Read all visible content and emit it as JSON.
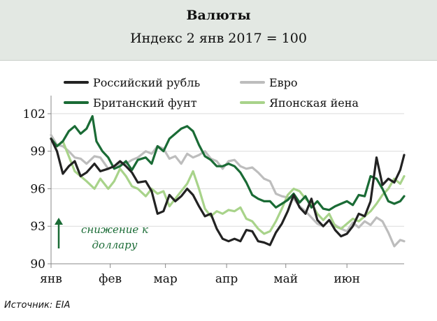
{
  "header": {
    "title": "Валюты",
    "subtitle": "Индекс 2 янв 2017 = 100"
  },
  "source": "Источник: EIA",
  "colors": {
    "rub": "#222222",
    "eur": "#bdbdbd",
    "gbp": "#1a6b35",
    "jpy": "#a8d38a",
    "grid": "#dcdcdc",
    "axis": "#888888",
    "annotation": "#1a6b35"
  },
  "annotation": {
    "line1": "снижение к",
    "line2": "доллару"
  },
  "chart_data": {
    "type": "line",
    "title": "Валюты",
    "subtitle": "Индекс 2 янв 2017 = 100",
    "xlabel": "",
    "ylabel": "",
    "x_range": [
      "2017-01-02",
      "2017-06-30"
    ],
    "ylim": [
      90,
      103
    ],
    "yticks": [
      90,
      93,
      96,
      99,
      102
    ],
    "xticks": [
      {
        "label": "янв",
        "date": "2017-01-01"
      },
      {
        "label": "фев",
        "date": "2017-02-01"
      },
      {
        "label": "мар",
        "date": "2017-03-01"
      },
      {
        "label": "апр",
        "date": "2017-04-01"
      },
      {
        "label": "май",
        "date": "2017-05-01"
      },
      {
        "label": "июн",
        "date": "2017-06-01"
      }
    ],
    "grid": "horizontal",
    "legend_position": "top",
    "series": [
      {
        "name": "Российский рубль",
        "key": "rub",
        "points": [
          [
            "2017-01-02",
            100.0
          ],
          [
            "2017-01-05",
            99.0
          ],
          [
            "2017-01-08",
            97.2
          ],
          [
            "2017-01-11",
            97.8
          ],
          [
            "2017-01-14",
            98.2
          ],
          [
            "2017-01-17",
            97.0
          ],
          [
            "2017-01-20",
            97.3
          ],
          [
            "2017-01-24",
            98.0
          ],
          [
            "2017-01-27",
            97.4
          ],
          [
            "2017-01-31",
            97.6
          ],
          [
            "2017-02-03",
            97.8
          ],
          [
            "2017-02-06",
            98.2
          ],
          [
            "2017-02-09",
            97.8
          ],
          [
            "2017-02-12",
            97.3
          ],
          [
            "2017-02-15",
            96.5
          ],
          [
            "2017-02-19",
            96.6
          ],
          [
            "2017-02-22",
            95.8
          ],
          [
            "2017-02-25",
            94.0
          ],
          [
            "2017-02-28",
            94.2
          ],
          [
            "2017-03-03",
            95.5
          ],
          [
            "2017-03-06",
            95.0
          ],
          [
            "2017-03-09",
            95.4
          ],
          [
            "2017-03-12",
            96.0
          ],
          [
            "2017-03-15",
            95.5
          ],
          [
            "2017-03-18",
            94.6
          ],
          [
            "2017-03-21",
            93.8
          ],
          [
            "2017-03-24",
            94.0
          ],
          [
            "2017-03-27",
            92.8
          ],
          [
            "2017-03-30",
            92.0
          ],
          [
            "2017-04-02",
            91.8
          ],
          [
            "2017-04-05",
            92.0
          ],
          [
            "2017-04-08",
            91.8
          ],
          [
            "2017-04-11",
            92.7
          ],
          [
            "2017-04-14",
            92.6
          ],
          [
            "2017-04-17",
            91.8
          ],
          [
            "2017-04-20",
            91.7
          ],
          [
            "2017-04-23",
            91.5
          ],
          [
            "2017-04-26",
            92.5
          ],
          [
            "2017-04-29",
            93.2
          ],
          [
            "2017-05-02",
            94.2
          ],
          [
            "2017-05-05",
            95.5
          ],
          [
            "2017-05-08",
            94.5
          ],
          [
            "2017-05-11",
            94.0
          ],
          [
            "2017-05-14",
            95.2
          ],
          [
            "2017-05-17",
            93.5
          ],
          [
            "2017-05-20",
            93.0
          ],
          [
            "2017-05-23",
            93.5
          ],
          [
            "2017-05-26",
            92.7
          ],
          [
            "2017-05-29",
            92.2
          ],
          [
            "2017-06-01",
            92.4
          ],
          [
            "2017-06-04",
            93.0
          ],
          [
            "2017-06-07",
            94.0
          ],
          [
            "2017-06-10",
            93.8
          ],
          [
            "2017-06-13",
            95.0
          ],
          [
            "2017-06-16",
            98.5
          ],
          [
            "2017-06-19",
            96.3
          ],
          [
            "2017-06-22",
            96.8
          ],
          [
            "2017-06-25",
            96.5
          ],
          [
            "2017-06-28",
            97.5
          ],
          [
            "2017-06-30",
            98.7
          ]
        ]
      },
      {
        "name": "Евро",
        "key": "eur",
        "points": [
          [
            "2017-01-02",
            100.3
          ],
          [
            "2017-01-05",
            99.5
          ],
          [
            "2017-01-08",
            99.4
          ],
          [
            "2017-01-11",
            99.0
          ],
          [
            "2017-01-14",
            98.5
          ],
          [
            "2017-01-17",
            98.4
          ],
          [
            "2017-01-20",
            98.0
          ],
          [
            "2017-01-24",
            98.6
          ],
          [
            "2017-01-27",
            98.5
          ],
          [
            "2017-01-31",
            97.6
          ],
          [
            "2017-02-03",
            97.8
          ],
          [
            "2017-02-06",
            98.0
          ],
          [
            "2017-02-09",
            98.0
          ],
          [
            "2017-02-12",
            98.3
          ],
          [
            "2017-02-15",
            98.5
          ],
          [
            "2017-02-19",
            99.0
          ],
          [
            "2017-02-22",
            98.8
          ],
          [
            "2017-02-25",
            99.4
          ],
          [
            "2017-02-28",
            99.2
          ],
          [
            "2017-03-03",
            98.4
          ],
          [
            "2017-03-06",
            98.6
          ],
          [
            "2017-03-09",
            98.0
          ],
          [
            "2017-03-12",
            98.8
          ],
          [
            "2017-03-15",
            98.5
          ],
          [
            "2017-03-18",
            98.7
          ],
          [
            "2017-03-21",
            99.0
          ],
          [
            "2017-03-24",
            98.4
          ],
          [
            "2017-03-27",
            98.2
          ],
          [
            "2017-03-30",
            97.6
          ],
          [
            "2017-04-02",
            98.2
          ],
          [
            "2017-04-05",
            98.3
          ],
          [
            "2017-04-08",
            97.8
          ],
          [
            "2017-04-11",
            97.6
          ],
          [
            "2017-04-14",
            97.7
          ],
          [
            "2017-04-17",
            97.3
          ],
          [
            "2017-04-20",
            96.8
          ],
          [
            "2017-04-23",
            96.6
          ],
          [
            "2017-04-26",
            95.6
          ],
          [
            "2017-04-29",
            95.4
          ],
          [
            "2017-05-02",
            95.3
          ],
          [
            "2017-05-05",
            95.2
          ],
          [
            "2017-05-08",
            94.6
          ],
          [
            "2017-05-11",
            94.2
          ],
          [
            "2017-05-14",
            93.7
          ],
          [
            "2017-05-17",
            93.2
          ],
          [
            "2017-05-20",
            93.0
          ],
          [
            "2017-05-23",
            93.5
          ],
          [
            "2017-05-26",
            93.1
          ],
          [
            "2017-05-29",
            92.8
          ],
          [
            "2017-06-01",
            92.6
          ],
          [
            "2017-06-04",
            93.3
          ],
          [
            "2017-06-07",
            92.9
          ],
          [
            "2017-06-10",
            93.4
          ],
          [
            "2017-06-13",
            93.1
          ],
          [
            "2017-06-16",
            93.7
          ],
          [
            "2017-06-19",
            93.4
          ],
          [
            "2017-06-22",
            92.5
          ],
          [
            "2017-06-25",
            91.4
          ],
          [
            "2017-06-28",
            91.9
          ],
          [
            "2017-06-30",
            91.8
          ]
        ]
      },
      {
        "name": "Британский фунт",
        "key": "gbp",
        "points": [
          [
            "2017-01-02",
            100.0
          ],
          [
            "2017-01-05",
            99.4
          ],
          [
            "2017-01-08",
            99.8
          ],
          [
            "2017-01-11",
            100.6
          ],
          [
            "2017-01-14",
            101.0
          ],
          [
            "2017-01-17",
            100.4
          ],
          [
            "2017-01-20",
            100.8
          ],
          [
            "2017-01-23",
            101.8
          ],
          [
            "2017-01-25",
            99.8
          ],
          [
            "2017-01-28",
            99.0
          ],
          [
            "2017-01-31",
            98.5
          ],
          [
            "2017-02-03",
            97.6
          ],
          [
            "2017-02-06",
            97.8
          ],
          [
            "2017-02-09",
            98.2
          ],
          [
            "2017-02-12",
            97.5
          ],
          [
            "2017-02-15",
            98.3
          ],
          [
            "2017-02-19",
            98.5
          ],
          [
            "2017-02-22",
            98.0
          ],
          [
            "2017-02-25",
            99.4
          ],
          [
            "2017-02-28",
            99.0
          ],
          [
            "2017-03-03",
            100.0
          ],
          [
            "2017-03-06",
            100.4
          ],
          [
            "2017-03-09",
            100.8
          ],
          [
            "2017-03-12",
            101.0
          ],
          [
            "2017-03-15",
            100.6
          ],
          [
            "2017-03-18",
            99.5
          ],
          [
            "2017-03-21",
            98.6
          ],
          [
            "2017-03-24",
            98.3
          ],
          [
            "2017-03-27",
            97.8
          ],
          [
            "2017-03-30",
            97.8
          ],
          [
            "2017-04-02",
            98.0
          ],
          [
            "2017-04-05",
            97.8
          ],
          [
            "2017-04-08",
            97.3
          ],
          [
            "2017-04-11",
            96.5
          ],
          [
            "2017-04-14",
            95.5
          ],
          [
            "2017-04-17",
            95.2
          ],
          [
            "2017-04-20",
            95.0
          ],
          [
            "2017-04-23",
            95.0
          ],
          [
            "2017-04-26",
            94.5
          ],
          [
            "2017-04-29",
            94.8
          ],
          [
            "2017-05-02",
            95.1
          ],
          [
            "2017-05-05",
            95.6
          ],
          [
            "2017-05-08",
            94.9
          ],
          [
            "2017-05-11",
            95.4
          ],
          [
            "2017-05-14",
            94.5
          ],
          [
            "2017-05-17",
            95.0
          ],
          [
            "2017-05-20",
            94.4
          ],
          [
            "2017-05-23",
            94.3
          ],
          [
            "2017-05-26",
            94.6
          ],
          [
            "2017-05-29",
            94.8
          ],
          [
            "2017-06-01",
            95.0
          ],
          [
            "2017-06-04",
            94.7
          ],
          [
            "2017-06-07",
            95.5
          ],
          [
            "2017-06-10",
            95.4
          ],
          [
            "2017-06-13",
            97.0
          ],
          [
            "2017-06-16",
            96.8
          ],
          [
            "2017-06-19",
            96.0
          ],
          [
            "2017-06-22",
            95.0
          ],
          [
            "2017-06-25",
            94.8
          ],
          [
            "2017-06-28",
            95.0
          ],
          [
            "2017-06-30",
            95.4
          ]
        ]
      },
      {
        "name": "Японская йена",
        "key": "jpy",
        "points": [
          [
            "2017-01-02",
            100.0
          ],
          [
            "2017-01-05",
            99.4
          ],
          [
            "2017-01-08",
            99.8
          ],
          [
            "2017-01-11",
            98.6
          ],
          [
            "2017-01-14",
            97.4
          ],
          [
            "2017-01-17",
            97.0
          ],
          [
            "2017-01-20",
            96.6
          ],
          [
            "2017-01-24",
            96.0
          ],
          [
            "2017-01-27",
            96.8
          ],
          [
            "2017-01-31",
            96.0
          ],
          [
            "2017-02-03",
            96.6
          ],
          [
            "2017-02-06",
            97.6
          ],
          [
            "2017-02-09",
            97.0
          ],
          [
            "2017-02-12",
            96.2
          ],
          [
            "2017-02-15",
            96.0
          ],
          [
            "2017-02-19",
            95.4
          ],
          [
            "2017-02-22",
            96.0
          ],
          [
            "2017-02-25",
            95.6
          ],
          [
            "2017-02-28",
            95.8
          ],
          [
            "2017-03-03",
            94.6
          ],
          [
            "2017-03-06",
            95.2
          ],
          [
            "2017-03-09",
            95.8
          ],
          [
            "2017-03-12",
            96.4
          ],
          [
            "2017-03-15",
            97.4
          ],
          [
            "2017-03-18",
            96.0
          ],
          [
            "2017-03-21",
            94.4
          ],
          [
            "2017-03-24",
            93.8
          ],
          [
            "2017-03-27",
            94.2
          ],
          [
            "2017-03-30",
            94.0
          ],
          [
            "2017-04-02",
            94.3
          ],
          [
            "2017-04-05",
            94.2
          ],
          [
            "2017-04-08",
            94.5
          ],
          [
            "2017-04-11",
            93.6
          ],
          [
            "2017-04-14",
            93.4
          ],
          [
            "2017-04-17",
            92.8
          ],
          [
            "2017-04-20",
            92.4
          ],
          [
            "2017-04-23",
            92.6
          ],
          [
            "2017-04-26",
            93.4
          ],
          [
            "2017-04-29",
            94.4
          ],
          [
            "2017-05-02",
            95.5
          ],
          [
            "2017-05-05",
            96.0
          ],
          [
            "2017-05-08",
            95.8
          ],
          [
            "2017-05-11",
            95.2
          ],
          [
            "2017-05-14",
            94.8
          ],
          [
            "2017-05-17",
            94.0
          ],
          [
            "2017-05-20",
            93.5
          ],
          [
            "2017-05-23",
            94.0
          ],
          [
            "2017-05-26",
            93.0
          ],
          [
            "2017-05-29",
            92.8
          ],
          [
            "2017-06-01",
            93.2
          ],
          [
            "2017-06-04",
            93.6
          ],
          [
            "2017-06-07",
            93.4
          ],
          [
            "2017-06-10",
            93.8
          ],
          [
            "2017-06-13",
            94.2
          ],
          [
            "2017-06-16",
            94.8
          ],
          [
            "2017-06-19",
            95.5
          ],
          [
            "2017-06-22",
            96.0
          ],
          [
            "2017-06-25",
            96.8
          ],
          [
            "2017-06-28",
            96.4
          ],
          [
            "2017-06-30",
            97.0
          ]
        ]
      }
    ]
  }
}
